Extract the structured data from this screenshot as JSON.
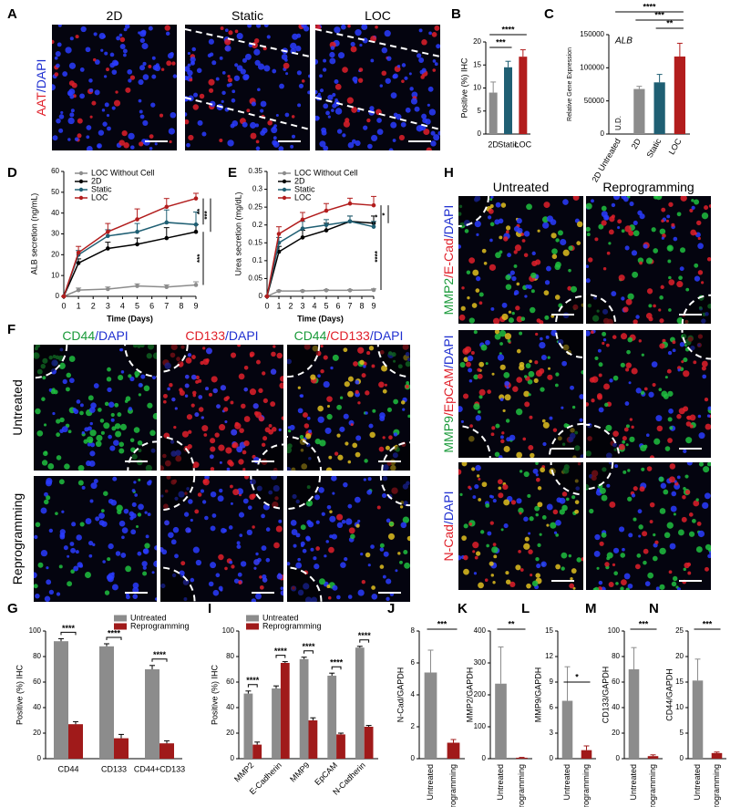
{
  "image_panels": [
    {
      "panel": "A",
      "columns": [
        [
          {
            "text": "2D",
            "color": "#000000"
          }
        ],
        [
          {
            "text": "Static",
            "color": "#000000"
          }
        ],
        [
          {
            "text": "LOC",
            "color": "#000000"
          }
        ]
      ],
      "rows": [
        [
          {
            "text": "AAT",
            "color": "#e0202a"
          },
          {
            "text": "/DAPI",
            "color": "#2030d0"
          }
        ]
      ]
    },
    {
      "panel": "F",
      "columns": [
        [
          {
            "text": "CD44",
            "color": "#1a9a3a"
          },
          {
            "text": "/DAPI",
            "color": "#2030d0"
          }
        ],
        [
          {
            "text": "CD133",
            "color": "#e0202a"
          },
          {
            "text": "/DAPI",
            "color": "#2030d0"
          }
        ],
        [
          {
            "text": "CD44",
            "color": "#1a9a3a"
          },
          {
            "text": "/CD133",
            "color": "#e0202a"
          },
          {
            "text": "/DAPI",
            "color": "#2030d0"
          }
        ]
      ],
      "rows": [
        [
          {
            "text": "Untreated",
            "color": "#000000"
          }
        ],
        [
          {
            "text": "Reprogramming",
            "color": "#000000"
          }
        ]
      ]
    },
    {
      "panel": "H",
      "columns": [
        [
          {
            "text": "Untreated",
            "color": "#000000"
          }
        ],
        [
          {
            "text": "Reprogramming",
            "color": "#000000"
          }
        ]
      ],
      "rows": [
        [
          {
            "text": "MMP2",
            "color": "#1a9a3a"
          },
          {
            "text": "/E-Cad",
            "color": "#e0202a"
          },
          {
            "text": "/DAPI",
            "color": "#2030d0"
          }
        ],
        [
          {
            "text": "MMP9",
            "color": "#1a9a3a"
          },
          {
            "text": "/EpCAM",
            "color": "#e0202a"
          },
          {
            "text": "/DAPI",
            "color": "#2030d0"
          }
        ],
        [
          {
            "text": "N-Cad",
            "color": "#e0202a"
          },
          {
            "text": "/DAPI",
            "color": "#2030d0"
          }
        ]
      ]
    }
  ],
  "chart_data": [
    {
      "type": "bar",
      "panel": "B",
      "ylabel": "Positive (%) IHC",
      "categories": [
        "2D",
        "Static",
        "LOC"
      ],
      "values": [
        9,
        14.5,
        16.8
      ],
      "errors": [
        2.3,
        1.3,
        1.5
      ],
      "colors": [
        "#8c8c8c",
        "#1f5f73",
        "#b21d1d"
      ],
      "ylim": [
        0,
        20
      ],
      "yticks": [
        0,
        5,
        10,
        15,
        20
      ],
      "significance": [
        "***",
        "****"
      ]
    },
    {
      "type": "bar",
      "panel": "C",
      "ylabel": "Relative Gene Expression",
      "gene": "ALB",
      "categories": [
        "2D Untreated",
        "2D",
        "Static",
        "LOC"
      ],
      "values": [
        null,
        68000,
        78000,
        117000
      ],
      "value_labels": [
        "U.D.",
        null,
        null,
        null
      ],
      "errors": [
        null,
        4000,
        12000,
        20000
      ],
      "colors": [
        "#8c8c8c",
        "#8c8c8c",
        "#1f5f73",
        "#b21d1d"
      ],
      "ylim": [
        0,
        150000
      ],
      "yticks": [
        0,
        50000,
        100000,
        150000
      ],
      "significance": [
        "****",
        "***",
        "**"
      ]
    },
    {
      "type": "line",
      "panel": "D",
      "xlabel": "Time (Days)",
      "ylabel": "ALB secretion (ng/mL)",
      "x": [
        0,
        1,
        3,
        5,
        7,
        9
      ],
      "xlim": [
        0,
        9
      ],
      "xticks": [
        0,
        1,
        2,
        3,
        4,
        5,
        6,
        7,
        8,
        9
      ],
      "ylim": [
        0,
        60
      ],
      "yticks": [
        0,
        10,
        20,
        30,
        40,
        50,
        60
      ],
      "legend": "upper-left",
      "series": [
        {
          "name": "LOC Without Cell",
          "color": "#8c8c8c",
          "values": [
            0,
            3,
            3.5,
            5,
            4.5,
            5.5
          ],
          "errors": [
            0,
            1,
            1,
            1,
            1,
            1.5
          ]
        },
        {
          "name": "2D",
          "color": "#000000",
          "values": [
            0,
            16,
            23,
            25,
            28,
            31
          ],
          "errors": [
            0,
            2,
            3,
            3,
            5,
            3.5
          ]
        },
        {
          "name": "Static",
          "color": "#1f5f73",
          "values": [
            0,
            20,
            29,
            31,
            35.5,
            34.5
          ],
          "errors": [
            0,
            2,
            3,
            4,
            6,
            6
          ]
        },
        {
          "name": "LOC",
          "color": "#b21d1d",
          "values": [
            0,
            21,
            31,
            37,
            43,
            47
          ],
          "errors": [
            0,
            3,
            4,
            5,
            4,
            2.5
          ]
        }
      ],
      "significance": [
        "**",
        "***",
        "***"
      ]
    },
    {
      "type": "line",
      "panel": "E",
      "xlabel": "Time (Days)",
      "ylabel": "Urea secretion (mg/dL)",
      "x": [
        0,
        1,
        3,
        5,
        7,
        9
      ],
      "xlim": [
        0,
        9
      ],
      "xticks": [
        0,
        1,
        2,
        3,
        4,
        5,
        6,
        7,
        8,
        9
      ],
      "ylim": [
        0,
        0.35
      ],
      "yticks": [
        0,
        0.05,
        0.1,
        0.15,
        0.2,
        0.25,
        0.3,
        0.35
      ],
      "legend": "upper-left",
      "series": [
        {
          "name": "LOC Without Cell",
          "color": "#8c8c8c",
          "values": [
            0,
            0.015,
            0.015,
            0.017,
            0.017,
            0.018
          ],
          "errors": [
            0,
            0.002,
            0.002,
            0.002,
            0.002,
            0.003
          ]
        },
        {
          "name": "2D",
          "color": "#000000",
          "values": [
            0,
            0.125,
            0.165,
            0.185,
            0.21,
            0.205
          ],
          "errors": [
            0,
            0.015,
            0.02,
            0.02,
            0.015,
            0.02
          ]
        },
        {
          "name": "Static",
          "color": "#1f5f73",
          "values": [
            0,
            0.15,
            0.19,
            0.2,
            0.21,
            0.195
          ],
          "errors": [
            0,
            0.015,
            0.02,
            0.015,
            0.015,
            0.015
          ]
        },
        {
          "name": "LOC",
          "color": "#b21d1d",
          "values": [
            0,
            0.175,
            0.215,
            0.24,
            0.26,
            0.255
          ],
          "errors": [
            0,
            0.02,
            0.02,
            0.02,
            0.015,
            0.025
          ]
        }
      ],
      "significance": [
        "*",
        "*",
        "****"
      ]
    },
    {
      "type": "bar",
      "panel": "G",
      "ylabel": "Positive (%) IHC",
      "legend": "upper-right",
      "categories": [
        "CD44",
        "CD133",
        "CD44+CD133"
      ],
      "ylim": [
        0,
        100
      ],
      "yticks": [
        0,
        20,
        40,
        60,
        80,
        100
      ],
      "series": [
        {
          "name": "Untreated",
          "color": "#8c8c8c",
          "values": [
            92,
            88,
            70
          ],
          "errors": [
            2,
            2,
            3
          ]
        },
        {
          "name": "Reprogramming",
          "color": "#a01a1a",
          "values": [
            27,
            16,
            12
          ],
          "errors": [
            2,
            3,
            2
          ]
        }
      ],
      "significance": [
        "****",
        "****",
        "****"
      ]
    },
    {
      "type": "bar",
      "panel": "I",
      "ylabel": "Positive (%) IHC",
      "legend": "upper-left",
      "categories": [
        "MMP2",
        "E-Cadherin",
        "MMP9",
        "EpCAM",
        "N-Cadherin"
      ],
      "ylim": [
        0,
        100
      ],
      "yticks": [
        0,
        20,
        40,
        60,
        80,
        100
      ],
      "series": [
        {
          "name": "Untreated",
          "color": "#8c8c8c",
          "values": [
            51,
            55,
            78,
            65,
            87
          ],
          "errors": [
            2,
            2,
            1.5,
            2,
            1
          ]
        },
        {
          "name": "Reprogramming",
          "color": "#a01a1a",
          "values": [
            11,
            75,
            30,
            19,
            25
          ],
          "errors": [
            2,
            1,
            2,
            1,
            1
          ]
        }
      ],
      "significance": [
        "****",
        "****",
        "****",
        "****",
        "****"
      ]
    },
    {
      "type": "bar",
      "panel": "J",
      "ylabel": "N-Cad/GAPDH",
      "categories": [
        "Untreated",
        "Reprogramming"
      ],
      "values": [
        5.4,
        1.0
      ],
      "errors": [
        1.4,
        0.2
      ],
      "colors": [
        "#8c8c8c",
        "#a01a1a"
      ],
      "ylim": [
        0,
        8
      ],
      "yticks": [
        0,
        2,
        4,
        6,
        8
      ],
      "significance": [
        "***"
      ]
    },
    {
      "type": "bar",
      "panel": "K",
      "ylabel": "MMP2/GAPDH",
      "categories": [
        "Untreated",
        "Reprogramming"
      ],
      "values": [
        235,
        3
      ],
      "errors": [
        115,
        1
      ],
      "colors": [
        "#8c8c8c",
        "#a01a1a"
      ],
      "ylim": [
        0,
        400
      ],
      "yticks": [
        0,
        100,
        200,
        300,
        400
      ],
      "significance": [
        "**"
      ]
    },
    {
      "type": "bar",
      "panel": "L",
      "ylabel": "MMP9/GAPDH",
      "categories": [
        "Untreated",
        "Reprogramming"
      ],
      "values": [
        6.8,
        1.0
      ],
      "errors": [
        4,
        0.5
      ],
      "colors": [
        "#8c8c8c",
        "#a01a1a"
      ],
      "ylim": [
        0,
        15
      ],
      "yticks": [
        0,
        3,
        6,
        9,
        12,
        15
      ],
      "significance": [
        "*"
      ]
    },
    {
      "type": "bar",
      "panel": "M",
      "ylabel": "CD133/GAPDH",
      "categories": [
        "Untreated",
        "Reprogramming"
      ],
      "values": [
        70,
        2
      ],
      "errors": [
        17,
        1
      ],
      "colors": [
        "#8c8c8c",
        "#a01a1a"
      ],
      "ylim": [
        0,
        100
      ],
      "yticks": [
        0,
        20,
        40,
        60,
        80,
        100
      ],
      "significance": [
        "***"
      ]
    },
    {
      "type": "bar",
      "panel": "N",
      "ylabel": "CD44/GAPDH",
      "categories": [
        "Untreated",
        "Reprogramming"
      ],
      "values": [
        15.3,
        1.1
      ],
      "errors": [
        4.2,
        0.2
      ],
      "colors": [
        "#8c8c8c",
        "#a01a1a"
      ],
      "ylim": [
        0,
        25
      ],
      "yticks": [
        0,
        5,
        10,
        15,
        20,
        25
      ],
      "significance": [
        "***"
      ]
    }
  ]
}
